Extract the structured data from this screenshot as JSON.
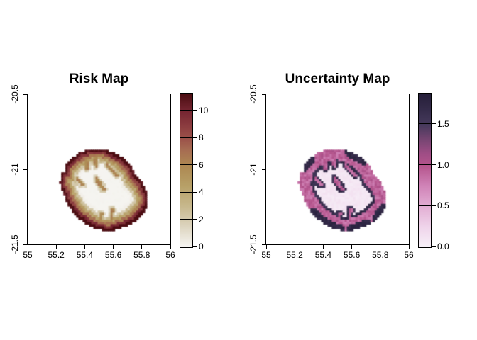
{
  "figure": {
    "background": "#ffffff"
  },
  "panels": [
    {
      "title": "Risk Map",
      "x_tick_labels": [
        "55",
        "55.2",
        "55.4",
        "55.6",
        "55.8",
        "56"
      ],
      "x_tick_values": [
        55,
        55.2,
        55.4,
        55.6,
        55.8,
        56
      ],
      "y_tick_labels": [
        "-20.5",
        "-21",
        "-21.5"
      ],
      "y_tick_values": [
        -20.5,
        -21,
        -21.5
      ],
      "colorbar": {
        "min": 0,
        "max": 11.3,
        "tick_values": [
          0,
          2,
          4,
          6,
          8,
          10
        ],
        "tick_labels": [
          "0",
          "2",
          "4",
          "6",
          "8",
          "10"
        ],
        "ramp": [
          [
            0,
            "#f6f5f2"
          ],
          [
            1.5,
            "#ddd5c0"
          ],
          [
            3,
            "#c7b88d"
          ],
          [
            4.5,
            "#b7a067"
          ],
          [
            6,
            "#ad8852"
          ],
          [
            7.2,
            "#a66b52"
          ],
          [
            8,
            "#9b5149"
          ],
          [
            9,
            "#8a3a3e"
          ],
          [
            10,
            "#752531"
          ],
          [
            11.3,
            "#4a0c11"
          ]
        ]
      }
    },
    {
      "title": "Uncertainty Map",
      "x_tick_labels": [
        "55",
        "55.2",
        "55.4",
        "55.6",
        "55.8",
        "56"
      ],
      "x_tick_values": [
        55,
        55.2,
        55.4,
        55.6,
        55.8,
        56
      ],
      "y_tick_labels": [
        "-20.5",
        "-21",
        "-21.5"
      ],
      "y_tick_values": [
        -20.5,
        -21,
        -21.5
      ],
      "colorbar": {
        "min": 0,
        "max": 1.88,
        "tick_values": [
          0,
          0.5,
          1.0,
          1.5
        ],
        "tick_labels": [
          "0.0",
          "0.5",
          "1.0",
          "1.5"
        ],
        "ramp": [
          [
            0,
            "#f7f0f8"
          ],
          [
            0.25,
            "#efd4ea"
          ],
          [
            0.5,
            "#e2add3"
          ],
          [
            0.75,
            "#d083b7"
          ],
          [
            1.0,
            "#b4548c"
          ],
          [
            1.15,
            "#9e4d85"
          ],
          [
            1.3,
            "#7b4674"
          ],
          [
            1.5,
            "#45395b"
          ],
          [
            1.7,
            "#332a48"
          ],
          [
            1.88,
            "#251e39"
          ]
        ]
      }
    }
  ],
  "chart_data": {
    "type": "heatmap",
    "description": "Two side-by-side raster maps of Reunion Island (lon 55-56, lat -21.5 to -20.5): a risk surface peaking along the coastline and an uncertainty surface peaking on a ring at the inland edge of the coastal risk gradient.",
    "x_range": [
      55,
      56
    ],
    "y_range": [
      -21.5,
      -20.5
    ],
    "x_ticks": [
      55,
      55.2,
      55.4,
      55.6,
      55.8,
      56
    ],
    "y_ticks": [
      -20.5,
      -21,
      -21.5
    ],
    "maps": [
      {
        "name": "Risk Map",
        "value_range": [
          0,
          11.3
        ],
        "colorbar_ticks": [
          0,
          2,
          4,
          6,
          8,
          10
        ],
        "pattern": "value ~11 (dark red) on the coastline, decaying ~2.15 per grid cell inland to ~0 (white) in the interior; tan canyon lines keep elevated values inside the island"
      },
      {
        "name": "Uncertainty Map",
        "value_range": [
          0,
          1.88
        ],
        "colorbar_ticks": [
          0,
          0.5,
          1.0,
          1.5
        ],
        "pattern": "value ~0.9 (pink) over the coastal risk-gradient band, ~1.7 (dark navy) in a ring where risk falls to 0 and on coastal hotspot segments, ~0.05 (pale lavender) in the interior"
      }
    ],
    "island_model": {
      "grid": {
        "lon0": 55.16,
        "lat_top": -20.84,
        "cell_deg": 0.015,
        "cols": 52,
        "rows": 42
      },
      "outline": [
        [
          55.305,
          -20.93
        ],
        [
          55.365,
          -20.885
        ],
        [
          55.445,
          -20.865
        ],
        [
          55.545,
          -20.87
        ],
        [
          55.615,
          -20.895
        ],
        [
          55.675,
          -20.925
        ],
        [
          55.715,
          -20.965
        ],
        [
          55.745,
          -21.02
        ],
        [
          55.8,
          -21.09
        ],
        [
          55.83,
          -21.15
        ],
        [
          55.84,
          -21.215
        ],
        [
          55.82,
          -21.275
        ],
        [
          55.775,
          -21.33
        ],
        [
          55.705,
          -21.37
        ],
        [
          55.625,
          -21.4
        ],
        [
          55.545,
          -21.41
        ],
        [
          55.465,
          -21.39
        ],
        [
          55.395,
          -21.355
        ],
        [
          55.33,
          -21.3
        ],
        [
          55.28,
          -21.23
        ],
        [
          55.25,
          -21.16
        ],
        [
          55.225,
          -21.09
        ],
        [
          55.235,
          -21.035
        ],
        [
          55.27,
          -21.0
        ],
        [
          55.262,
          -20.965
        ]
      ],
      "canyon_lines": [
        [
          [
            55.4,
            -20.885
          ],
          [
            55.415,
            -20.99
          ]
        ],
        [
          [
            55.465,
            -20.88
          ],
          [
            55.48,
            -20.975
          ]
        ],
        [
          [
            55.56,
            -20.975
          ],
          [
            55.625,
            -21.04
          ]
        ],
        [
          [
            55.48,
            -21.065
          ],
          [
            55.53,
            -21.13
          ]
        ],
        [
          [
            55.345,
            -21.065
          ],
          [
            55.385,
            -21.105
          ]
        ],
        [
          [
            55.59,
            -21.27
          ],
          [
            55.585,
            -21.4
          ]
        ],
        [
          [
            55.515,
            -21.3
          ],
          [
            55.505,
            -21.405
          ]
        ],
        [
          [
            55.66,
            -21.345
          ],
          [
            55.655,
            -21.395
          ]
        ]
      ],
      "coast_hotspots": [
        [
          [
            55.26,
            -20.99
          ],
          [
            55.31,
            -20.93
          ]
        ],
        [
          [
            55.59,
            -20.89
          ],
          [
            55.69,
            -20.935
          ]
        ],
        [
          [
            55.39,
            -21.35
          ],
          [
            55.52,
            -21.4
          ]
        ],
        [
          [
            55.6,
            -21.4
          ],
          [
            55.71,
            -21.365
          ]
        ],
        [
          [
            55.33,
            -21.295
          ],
          [
            55.39,
            -21.35
          ]
        ],
        [
          [
            55.82,
            -21.27
          ],
          [
            55.775,
            -21.33
          ]
        ]
      ]
    }
  }
}
